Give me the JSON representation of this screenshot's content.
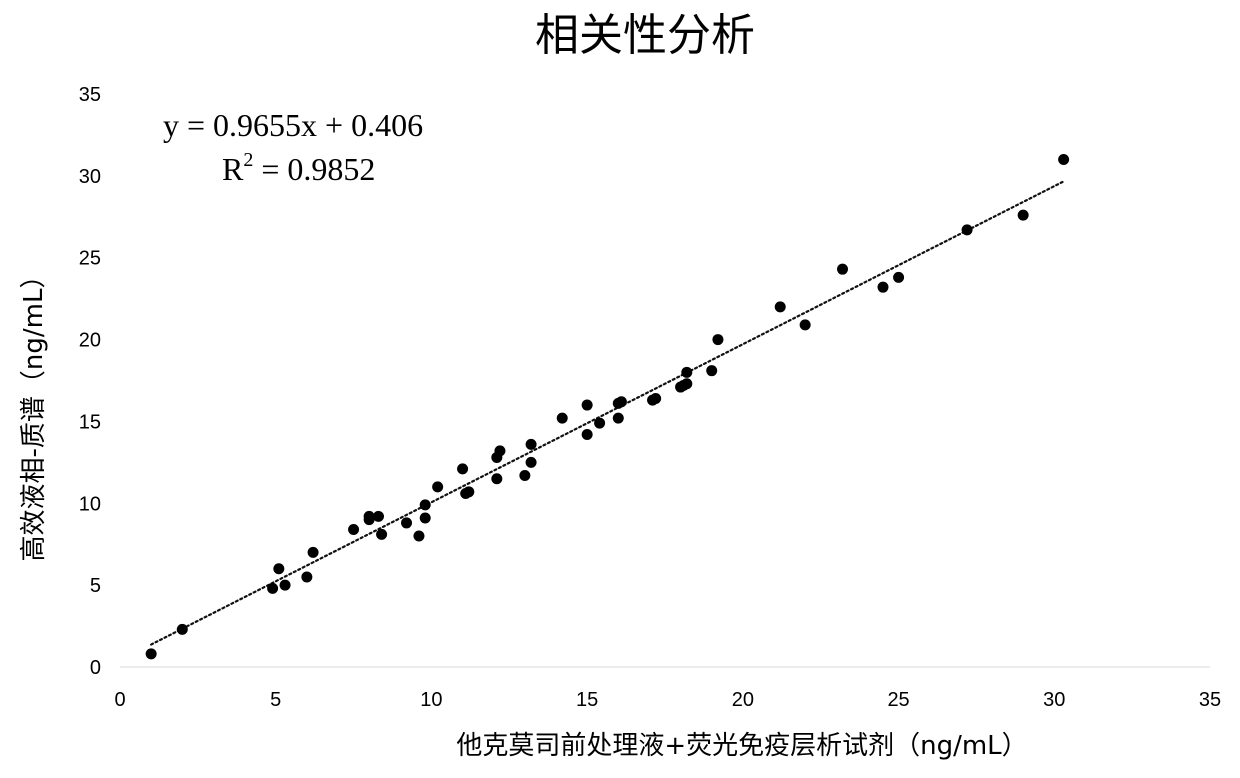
{
  "chart_data": {
    "type": "scatter",
    "title": "相关性分析",
    "xlabel": "他克莫司前处理液+荧光免疫层析试剂（ng/mL）",
    "ylabel": "高效液相-质谱（ng/mL）",
    "xlim": [
      0,
      35
    ],
    "ylim": [
      0,
      35
    ],
    "xticks": [
      0,
      5,
      10,
      15,
      20,
      25,
      30,
      35
    ],
    "yticks": [
      0,
      5,
      10,
      15,
      20,
      25,
      30,
      35
    ],
    "grid": false,
    "legend": "none",
    "trendline": {
      "type": "linear",
      "slope": 0.9655,
      "intercept": 0.406,
      "x_range": [
        1,
        30.3
      ],
      "style": "dotted"
    },
    "annotations": {
      "equation": "y = 0.9655x + 0.406",
      "r2_prefix": "R",
      "r2_sup": "2",
      "r2_value": " = 0.9852"
    },
    "series": [
      {
        "points": [
          [
            1.0,
            0.8
          ],
          [
            2.0,
            2.3
          ],
          [
            4.9,
            4.8
          ],
          [
            5.1,
            6.0
          ],
          [
            5.3,
            5.0
          ],
          [
            6.0,
            5.5
          ],
          [
            6.2,
            7.0
          ],
          [
            7.5,
            8.4
          ],
          [
            8.0,
            9.0
          ],
          [
            8.0,
            9.2
          ],
          [
            8.3,
            9.2
          ],
          [
            8.4,
            8.1
          ],
          [
            9.2,
            8.8
          ],
          [
            9.6,
            8.0
          ],
          [
            9.8,
            9.1
          ],
          [
            9.8,
            9.9
          ],
          [
            10.2,
            11.0
          ],
          [
            11.0,
            12.1
          ],
          [
            11.1,
            10.6
          ],
          [
            11.2,
            10.7
          ],
          [
            12.1,
            11.5
          ],
          [
            12.1,
            12.8
          ],
          [
            12.2,
            13.2
          ],
          [
            13.0,
            11.7
          ],
          [
            13.2,
            12.5
          ],
          [
            13.2,
            13.6
          ],
          [
            14.2,
            15.2
          ],
          [
            15.0,
            14.2
          ],
          [
            15.0,
            16.0
          ],
          [
            15.4,
            14.9
          ],
          [
            16.0,
            15.2
          ],
          [
            16.0,
            16.1
          ],
          [
            16.1,
            16.2
          ],
          [
            17.1,
            16.3
          ],
          [
            17.2,
            16.4
          ],
          [
            18.0,
            17.1
          ],
          [
            18.1,
            17.2
          ],
          [
            18.2,
            18.0
          ],
          [
            18.2,
            17.3
          ],
          [
            19.0,
            18.1
          ],
          [
            19.2,
            20.0
          ],
          [
            21.2,
            22.0
          ],
          [
            22.0,
            20.9
          ],
          [
            23.2,
            24.3
          ],
          [
            24.5,
            23.2
          ],
          [
            25.0,
            23.8
          ],
          [
            27.2,
            26.7
          ],
          [
            29.0,
            27.6
          ],
          [
            30.3,
            31.0
          ]
        ]
      }
    ]
  }
}
